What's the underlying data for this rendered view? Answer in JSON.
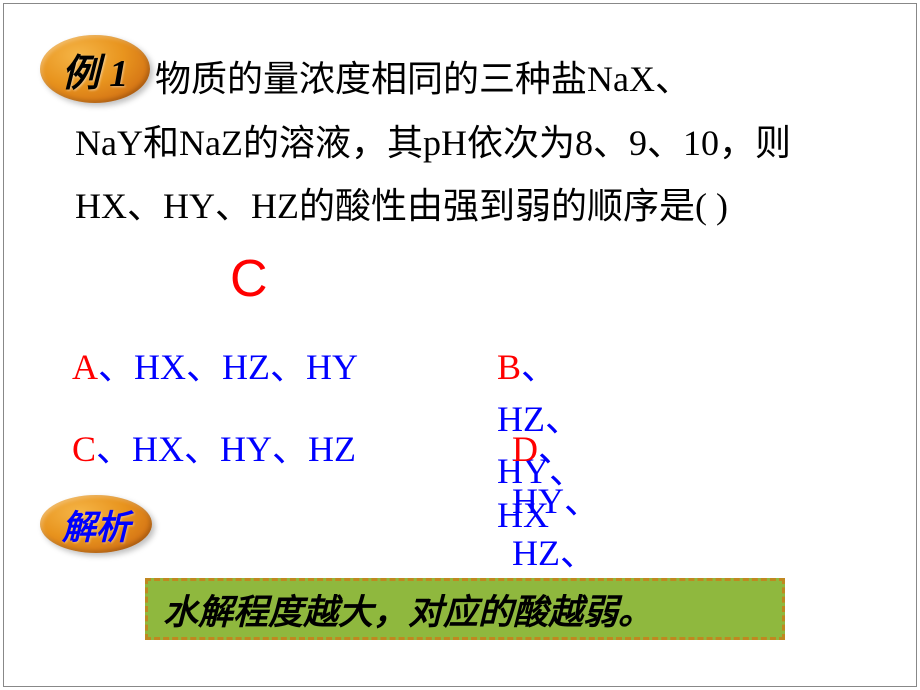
{
  "example_badge": {
    "text": "例 1",
    "font_size": 38,
    "text_color": "#000000",
    "bg_gradient_start": "#f5b547",
    "bg_gradient_mid": "#e8941e",
    "bg_gradient_end": "#c45a0e"
  },
  "question": {
    "line1": "物质的量浓度相同的三种盐NaX、",
    "line2": "NaY和NaZ的溶液，其pH依次为8、9、10，则HX、HY、HZ的酸性由强到弱的顺序是(     )",
    "font_size": 36,
    "text_color": "#000000"
  },
  "answer": {
    "marker": "C",
    "color": "#ff0000",
    "font_size": 52
  },
  "options": {
    "a": {
      "label": "A",
      "text": "、HX、HZ、HY"
    },
    "b": {
      "label": "B",
      "text": "、HZ、HY、HX"
    },
    "c": {
      "label": "C",
      "text": "、HX、HY、HZ"
    },
    "d": {
      "label": "D",
      "text": "、HY、HZ、HX"
    },
    "label_color": "#ff0000",
    "text_color": "#0000ff",
    "font_size": 36
  },
  "analysis_badge": {
    "text": "解析",
    "font_size": 34,
    "text_color": "#0000ff",
    "bg_gradient_start": "#f5b547",
    "bg_gradient_mid": "#e8941e",
    "bg_gradient_end": "#c45a0e"
  },
  "explanation": {
    "text": "水解程度越大，对应的酸越弱。",
    "font_size": 35,
    "text_color": "#000000",
    "bg_color": "#8fb83e",
    "border_color": "#c08820"
  }
}
